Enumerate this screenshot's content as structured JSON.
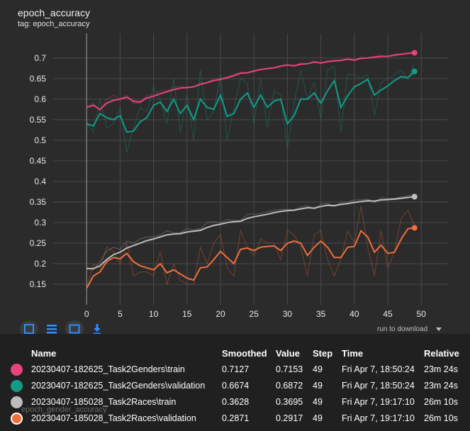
{
  "card": {
    "title": "epoch_accuracy",
    "tag": "tag: epoch_accuracy"
  },
  "toolbar": {
    "icons": [
      "fit-domain-icon",
      "list-icon",
      "expand-icon",
      "download-icon"
    ],
    "run_to_download_label": "run to download"
  },
  "ghost_text": "epoch_gender_accuracy",
  "table": {
    "headers": {
      "name": "Name",
      "smoothed": "Smoothed",
      "value": "Value",
      "step": "Step",
      "time": "Time",
      "relative": "Relative"
    },
    "rows": [
      {
        "color": "#e8437a",
        "name": "20230407-182625_Task2Genders\\train",
        "smoothed": "0.7127",
        "value": "0.7153",
        "step": "49",
        "time": "Fri Apr 7, 18:50:24",
        "relative": "23m 24s"
      },
      {
        "color": "#129c86",
        "name": "20230407-182625_Task2Genders\\validation",
        "smoothed": "0.6674",
        "value": "0.6872",
        "step": "49",
        "time": "Fri Apr 7, 18:50:24",
        "relative": "23m 24s"
      },
      {
        "color": "#bdbdbd",
        "name": "20230407-185028_Task2Races\\train",
        "smoothed": "0.3628",
        "value": "0.3695",
        "step": "49",
        "time": "Fri Apr 7, 19:17:10",
        "relative": "26m 10s"
      },
      {
        "color": "#ef6e3c",
        "name": "20230407-185028_Task2Races\\validation",
        "smoothed": "0.2871",
        "value": "0.2917",
        "step": "49",
        "time": "Fri Apr 7, 19:17:10",
        "relative": "26m 10s"
      }
    ]
  },
  "chart_data": {
    "type": "line",
    "title": "epoch_accuracy",
    "subtitle": "tag: epoch_accuracy",
    "xlabel": "",
    "ylabel": "",
    "xlim": [
      -5,
      54
    ],
    "ylim": [
      0.1,
      0.76
    ],
    "xticks": [
      0,
      5,
      10,
      15,
      20,
      25,
      30,
      35,
      40,
      45,
      50
    ],
    "yticks": [
      0.15,
      0.2,
      0.25,
      0.3,
      0.35,
      0.4,
      0.45,
      0.5,
      0.55,
      0.6,
      0.65,
      0.7
    ],
    "grid": true,
    "legend": "none",
    "series": [
      {
        "name": "20230407-182625_Task2Genders\\train",
        "color": "#e8437a",
        "smoothed": [
          0.58,
          0.585,
          0.575,
          0.59,
          0.597,
          0.6,
          0.605,
          0.595,
          0.593,
          0.603,
          0.607,
          0.613,
          0.618,
          0.623,
          0.627,
          0.628,
          0.63,
          0.636,
          0.64,
          0.645,
          0.648,
          0.652,
          0.657,
          0.663,
          0.664,
          0.668,
          0.672,
          0.674,
          0.676,
          0.68,
          0.683,
          0.681,
          0.685,
          0.686,
          0.69,
          0.688,
          0.691,
          0.693,
          0.694,
          0.697,
          0.695,
          0.699,
          0.7,
          0.702,
          0.704,
          0.704,
          0.707,
          0.709,
          0.711,
          0.7127
        ],
        "raw": [
          0.58,
          0.59,
          0.57,
          0.6,
          0.61,
          0.6,
          0.61,
          0.59,
          0.59,
          0.61,
          0.61,
          0.62,
          0.62,
          0.63,
          0.63,
          0.63,
          0.63,
          0.64,
          0.64,
          0.65,
          0.65,
          0.655,
          0.66,
          0.665,
          0.665,
          0.67,
          0.673,
          0.675,
          0.677,
          0.682,
          0.684,
          0.679,
          0.688,
          0.686,
          0.693,
          0.686,
          0.693,
          0.695,
          0.695,
          0.699,
          0.693,
          0.702,
          0.7,
          0.704,
          0.706,
          0.703,
          0.709,
          0.711,
          0.713,
          0.7153
        ]
      },
      {
        "name": "20230407-182625_Task2Genders\\validation",
        "color": "#129c86",
        "smoothed": [
          0.54,
          0.535,
          0.565,
          0.555,
          0.55,
          0.56,
          0.52,
          0.522,
          0.545,
          0.555,
          0.585,
          0.593,
          0.57,
          0.6,
          0.565,
          0.585,
          0.55,
          0.6,
          0.58,
          0.575,
          0.61,
          0.558,
          0.565,
          0.6,
          0.615,
          0.58,
          0.61,
          0.58,
          0.595,
          0.6,
          0.54,
          0.56,
          0.6,
          0.6,
          0.615,
          0.59,
          0.62,
          0.645,
          0.58,
          0.608,
          0.63,
          0.638,
          0.648,
          0.61,
          0.622,
          0.632,
          0.645,
          0.655,
          0.652,
          0.6674
        ],
        "raw": [
          0.54,
          0.52,
          0.6,
          0.53,
          0.54,
          0.58,
          0.47,
          0.53,
          0.58,
          0.57,
          0.63,
          0.6,
          0.54,
          0.65,
          0.52,
          0.61,
          0.5,
          0.67,
          0.55,
          0.57,
          0.66,
          0.5,
          0.58,
          0.65,
          0.64,
          0.54,
          0.65,
          0.53,
          0.62,
          0.61,
          0.48,
          0.59,
          0.67,
          0.6,
          0.64,
          0.55,
          0.67,
          0.68,
          0.52,
          0.66,
          0.66,
          0.65,
          0.66,
          0.56,
          0.64,
          0.65,
          0.66,
          0.67,
          0.65,
          0.6872
        ]
      },
      {
        "name": "20230407-185028_Task2Races\\train",
        "color": "#bdbdbd",
        "smoothed": [
          0.188,
          0.188,
          0.195,
          0.21,
          0.222,
          0.228,
          0.238,
          0.244,
          0.25,
          0.256,
          0.26,
          0.265,
          0.27,
          0.272,
          0.273,
          0.277,
          0.279,
          0.281,
          0.288,
          0.293,
          0.296,
          0.3,
          0.302,
          0.303,
          0.31,
          0.314,
          0.317,
          0.32,
          0.324,
          0.327,
          0.329,
          0.33,
          0.333,
          0.336,
          0.335,
          0.339,
          0.342,
          0.341,
          0.344,
          0.346,
          0.349,
          0.351,
          0.353,
          0.352,
          0.355,
          0.356,
          0.357,
          0.359,
          0.361,
          0.3628
        ],
        "raw": [
          0.19,
          0.185,
          0.205,
          0.23,
          0.24,
          0.235,
          0.255,
          0.25,
          0.26,
          0.265,
          0.265,
          0.27,
          0.28,
          0.275,
          0.275,
          0.285,
          0.282,
          0.285,
          0.3,
          0.302,
          0.3,
          0.307,
          0.305,
          0.305,
          0.32,
          0.32,
          0.322,
          0.326,
          0.33,
          0.332,
          0.332,
          0.331,
          0.338,
          0.341,
          0.333,
          0.345,
          0.347,
          0.339,
          0.349,
          0.35,
          0.355,
          0.355,
          0.357,
          0.349,
          0.36,
          0.358,
          0.359,
          0.362,
          0.365,
          0.3695
        ]
      },
      {
        "name": "20230407-185028_Task2Races\\validation",
        "color": "#ef6e3c",
        "smoothed": [
          0.14,
          0.17,
          0.18,
          0.205,
          0.215,
          0.212,
          0.225,
          0.205,
          0.195,
          0.19,
          0.185,
          0.2,
          0.178,
          0.185,
          0.175,
          0.165,
          0.16,
          0.19,
          0.192,
          0.21,
          0.23,
          0.215,
          0.2,
          0.235,
          0.238,
          0.232,
          0.24,
          0.242,
          0.243,
          0.232,
          0.25,
          0.255,
          0.25,
          0.22,
          0.24,
          0.255,
          0.24,
          0.215,
          0.215,
          0.24,
          0.242,
          0.28,
          0.265,
          0.228,
          0.245,
          0.225,
          0.228,
          0.26,
          0.285,
          0.2871
        ],
        "raw": [
          0.14,
          0.2,
          0.19,
          0.24,
          0.23,
          0.2,
          0.25,
          0.17,
          0.18,
          0.18,
          0.17,
          0.23,
          0.15,
          0.2,
          0.16,
          0.15,
          0.15,
          0.24,
          0.2,
          0.25,
          0.27,
          0.19,
          0.17,
          0.28,
          0.24,
          0.22,
          0.26,
          0.25,
          0.25,
          0.21,
          0.28,
          0.27,
          0.24,
          0.17,
          0.27,
          0.28,
          0.21,
          0.17,
          0.21,
          0.28,
          0.25,
          0.34,
          0.24,
          0.17,
          0.28,
          0.19,
          0.23,
          0.31,
          0.33,
          0.2917
        ]
      }
    ]
  }
}
